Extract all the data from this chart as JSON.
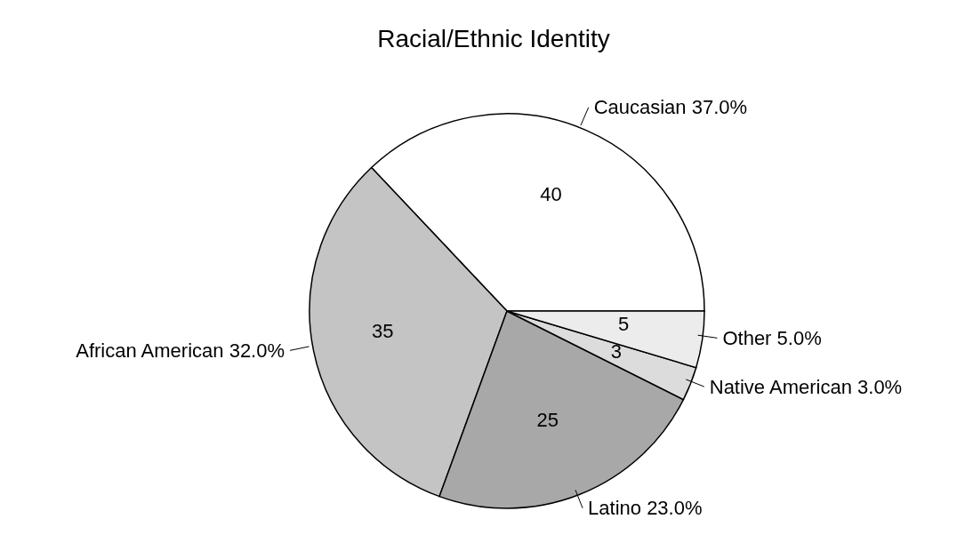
{
  "chart_data": {
    "type": "pie",
    "title": "Racial/Ethnic Identity",
    "categories": [
      "Caucasian 37.0%",
      "African American 32.0%",
      "Latino 23.0%",
      "Native American 3.0%",
      "Other 5.0%"
    ],
    "values": [
      40,
      35,
      25,
      3,
      5
    ],
    "colors": [
      "#ffffff",
      "#c4c4c4",
      "#a8a8a8",
      "#dcdcdc",
      "#ececec"
    ],
    "data_labels": true,
    "legend": false
  }
}
